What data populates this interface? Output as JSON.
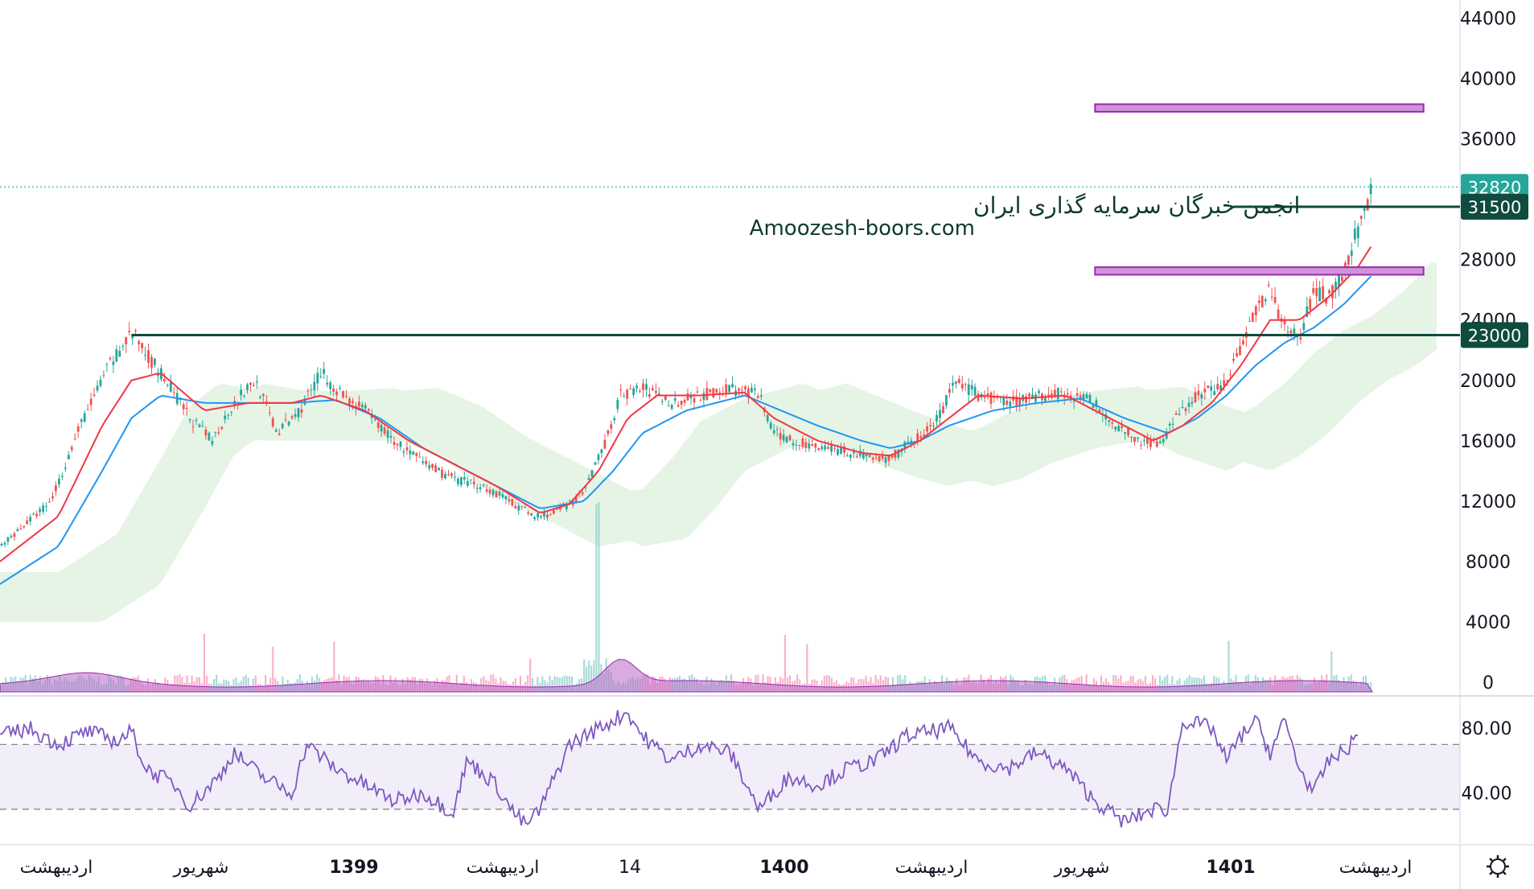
{
  "watermark": {
    "line1": "انجمن خبرگان سرمایه گذاری ایران",
    "line2": "Amoozesh-boors.com"
  },
  "colors": {
    "up": "#26a69a",
    "down": "#ef5350",
    "ema_fast": "#f23645",
    "ema_slow": "#2196f3",
    "rsi": "#7e57c2",
    "level_line": "#0f4b3e",
    "zone_fill": "#ce93d8",
    "zone_stroke": "#9c27b0",
    "last_price": "#26a69a"
  },
  "chart_data": {
    "type": "candlestick",
    "price_axis": {
      "ticks": [
        0,
        4000,
        8000,
        12000,
        16000,
        20000,
        24000,
        28000,
        32000,
        36000,
        40000,
        44000
      ],
      "ylim": [
        0,
        45200
      ]
    },
    "rsi_axis": {
      "ticks": [
        "40.00",
        "80.00"
      ],
      "bands": [
        30,
        70
      ]
    },
    "time_labels": [
      {
        "label": "اردیبهشت",
        "bold": false
      },
      {
        "label": "شهریور",
        "bold": false
      },
      {
        "label": "1399",
        "bold": true
      },
      {
        "label": "اردیبهشت",
        "bold": false
      },
      {
        "label": "14",
        "bold": false
      },
      {
        "label": "1400",
        "bold": true
      },
      {
        "label": "اردیبهشت",
        "bold": false
      },
      {
        "label": "شهریور",
        "bold": false
      },
      {
        "label": "1401",
        "bold": true
      },
      {
        "label": "اردیبهشت",
        "bold": false
      }
    ],
    "price_path": [
      [
        0,
        9000
      ],
      [
        0.035,
        12000
      ],
      [
        0.055,
        17000
      ],
      [
        0.075,
        21000
      ],
      [
        0.09,
        23200
      ],
      [
        0.11,
        20500
      ],
      [
        0.13,
        17500
      ],
      [
        0.145,
        16000
      ],
      [
        0.16,
        18500
      ],
      [
        0.175,
        20000
      ],
      [
        0.19,
        16500
      ],
      [
        0.205,
        18000
      ],
      [
        0.22,
        20500
      ],
      [
        0.235,
        19000
      ],
      [
        0.25,
        18000
      ],
      [
        0.27,
        16000
      ],
      [
        0.29,
        14500
      ],
      [
        0.31,
        13500
      ],
      [
        0.33,
        13000
      ],
      [
        0.35,
        12000
      ],
      [
        0.365,
        11000
      ],
      [
        0.38,
        11200
      ],
      [
        0.4,
        12500
      ],
      [
        0.415,
        16000
      ],
      [
        0.425,
        19000
      ],
      [
        0.44,
        19500
      ],
      [
        0.46,
        18500
      ],
      [
        0.48,
        19000
      ],
      [
        0.5,
        19500
      ],
      [
        0.52,
        19000
      ],
      [
        0.53,
        16500
      ],
      [
        0.55,
        15800
      ],
      [
        0.57,
        15500
      ],
      [
        0.59,
        15000
      ],
      [
        0.61,
        14800
      ],
      [
        0.625,
        16000
      ],
      [
        0.64,
        17000
      ],
      [
        0.655,
        20000
      ],
      [
        0.67,
        19000
      ],
      [
        0.69,
        18500
      ],
      [
        0.71,
        19000
      ],
      [
        0.73,
        19200
      ],
      [
        0.75,
        18500
      ],
      [
        0.765,
        17000
      ],
      [
        0.78,
        16000
      ],
      [
        0.795,
        15800
      ],
      [
        0.805,
        17500
      ],
      [
        0.82,
        19000
      ],
      [
        0.835,
        19500
      ],
      [
        0.85,
        22000
      ],
      [
        0.862,
        25000
      ],
      [
        0.87,
        26000
      ],
      [
        0.88,
        23500
      ],
      [
        0.89,
        22800
      ],
      [
        0.9,
        26000
      ],
      [
        0.91,
        25500
      ],
      [
        0.92,
        27000
      ],
      [
        0.93,
        30000
      ],
      [
        0.94,
        32820
      ]
    ],
    "ema_fast_path": [
      [
        0,
        8000
      ],
      [
        0.04,
        11000
      ],
      [
        0.07,
        17000
      ],
      [
        0.09,
        20000
      ],
      [
        0.11,
        20500
      ],
      [
        0.14,
        18000
      ],
      [
        0.17,
        18500
      ],
      [
        0.2,
        18500
      ],
      [
        0.22,
        19000
      ],
      [
        0.25,
        18000
      ],
      [
        0.28,
        16000
      ],
      [
        0.31,
        14500
      ],
      [
        0.34,
        13000
      ],
      [
        0.37,
        11200
      ],
      [
        0.39,
        11800
      ],
      [
        0.41,
        14000
      ],
      [
        0.43,
        17500
      ],
      [
        0.45,
        19000
      ],
      [
        0.48,
        19000
      ],
      [
        0.51,
        19200
      ],
      [
        0.53,
        17500
      ],
      [
        0.56,
        16000
      ],
      [
        0.59,
        15200
      ],
      [
        0.61,
        15000
      ],
      [
        0.63,
        16000
      ],
      [
        0.65,
        17500
      ],
      [
        0.67,
        19000
      ],
      [
        0.7,
        18800
      ],
      [
        0.73,
        19000
      ],
      [
        0.76,
        17500
      ],
      [
        0.79,
        16000
      ],
      [
        0.81,
        17000
      ],
      [
        0.83,
        18500
      ],
      [
        0.85,
        21000
      ],
      [
        0.87,
        24000
      ],
      [
        0.89,
        24000
      ],
      [
        0.91,
        25500
      ],
      [
        0.93,
        27500
      ],
      [
        0.94,
        29000
      ]
    ],
    "ema_slow_path": [
      [
        0,
        6500
      ],
      [
        0.04,
        9000
      ],
      [
        0.07,
        14000
      ],
      [
        0.09,
        17500
      ],
      [
        0.11,
        19000
      ],
      [
        0.14,
        18500
      ],
      [
        0.17,
        18500
      ],
      [
        0.2,
        18500
      ],
      [
        0.23,
        18700
      ],
      [
        0.26,
        17500
      ],
      [
        0.29,
        15500
      ],
      [
        0.32,
        14000
      ],
      [
        0.35,
        12500
      ],
      [
        0.37,
        11500
      ],
      [
        0.4,
        12000
      ],
      [
        0.42,
        14000
      ],
      [
        0.44,
        16500
      ],
      [
        0.47,
        18000
      ],
      [
        0.51,
        19000
      ],
      [
        0.53,
        18200
      ],
      [
        0.56,
        17000
      ],
      [
        0.59,
        16000
      ],
      [
        0.61,
        15500
      ],
      [
        0.63,
        16000
      ],
      [
        0.65,
        17000
      ],
      [
        0.68,
        18000
      ],
      [
        0.71,
        18500
      ],
      [
        0.74,
        18800
      ],
      [
        0.77,
        17500
      ],
      [
        0.8,
        16500
      ],
      [
        0.82,
        17500
      ],
      [
        0.84,
        19000
      ],
      [
        0.86,
        21000
      ],
      [
        0.88,
        22500
      ],
      [
        0.9,
        23500
      ],
      [
        0.92,
        25000
      ],
      [
        0.94,
        27000
      ]
    ],
    "rsi_path": [
      [
        0,
        75
      ],
      [
        0.02,
        80
      ],
      [
        0.04,
        70
      ],
      [
        0.06,
        78
      ],
      [
        0.08,
        72
      ],
      [
        0.09,
        78
      ],
      [
        0.1,
        55
      ],
      [
        0.12,
        45
      ],
      [
        0.13,
        32
      ],
      [
        0.15,
        50
      ],
      [
        0.16,
        65
      ],
      [
        0.18,
        50
      ],
      [
        0.2,
        40
      ],
      [
        0.21,
        70
      ],
      [
        0.23,
        55
      ],
      [
        0.25,
        45
      ],
      [
        0.27,
        35
      ],
      [
        0.29,
        40
      ],
      [
        0.31,
        28
      ],
      [
        0.32,
        60
      ],
      [
        0.34,
        45
      ],
      [
        0.35,
        30
      ],
      [
        0.36,
        20
      ],
      [
        0.37,
        30
      ],
      [
        0.39,
        70
      ],
      [
        0.41,
        80
      ],
      [
        0.43,
        90
      ],
      [
        0.44,
        75
      ],
      [
        0.46,
        60
      ],
      [
        0.48,
        70
      ],
      [
        0.5,
        65
      ],
      [
        0.52,
        30
      ],
      [
        0.54,
        50
      ],
      [
        0.56,
        45
      ],
      [
        0.58,
        55
      ],
      [
        0.6,
        60
      ],
      [
        0.62,
        75
      ],
      [
        0.65,
        80
      ],
      [
        0.67,
        60
      ],
      [
        0.69,
        55
      ],
      [
        0.71,
        65
      ],
      [
        0.73,
        55
      ],
      [
        0.75,
        35
      ],
      [
        0.77,
        22
      ],
      [
        0.79,
        30
      ],
      [
        0.8,
        30
      ],
      [
        0.81,
        85
      ],
      [
        0.83,
        80
      ],
      [
        0.84,
        60
      ],
      [
        0.85,
        75
      ],
      [
        0.86,
        85
      ],
      [
        0.87,
        65
      ],
      [
        0.88,
        85
      ],
      [
        0.89,
        55
      ],
      [
        0.9,
        40
      ],
      [
        0.91,
        60
      ],
      [
        0.92,
        65
      ],
      [
        0.93,
        75
      ]
    ],
    "levels": [
      {
        "value": 23000,
        "label": "23000",
        "x_start": 0.09
      },
      {
        "value": 31500,
        "label": "31500",
        "x_start": 0.845
      }
    ],
    "zones": [
      {
        "low": 37800,
        "high": 38300,
        "x_start": 0.75,
        "x_end": 0.975
      },
      {
        "low": 27000,
        "high": 27500,
        "x_start": 0.75,
        "x_end": 0.975
      }
    ],
    "last_price": {
      "value": 32820,
      "label": "32820"
    },
    "volume_spike_x": 0.41
  }
}
